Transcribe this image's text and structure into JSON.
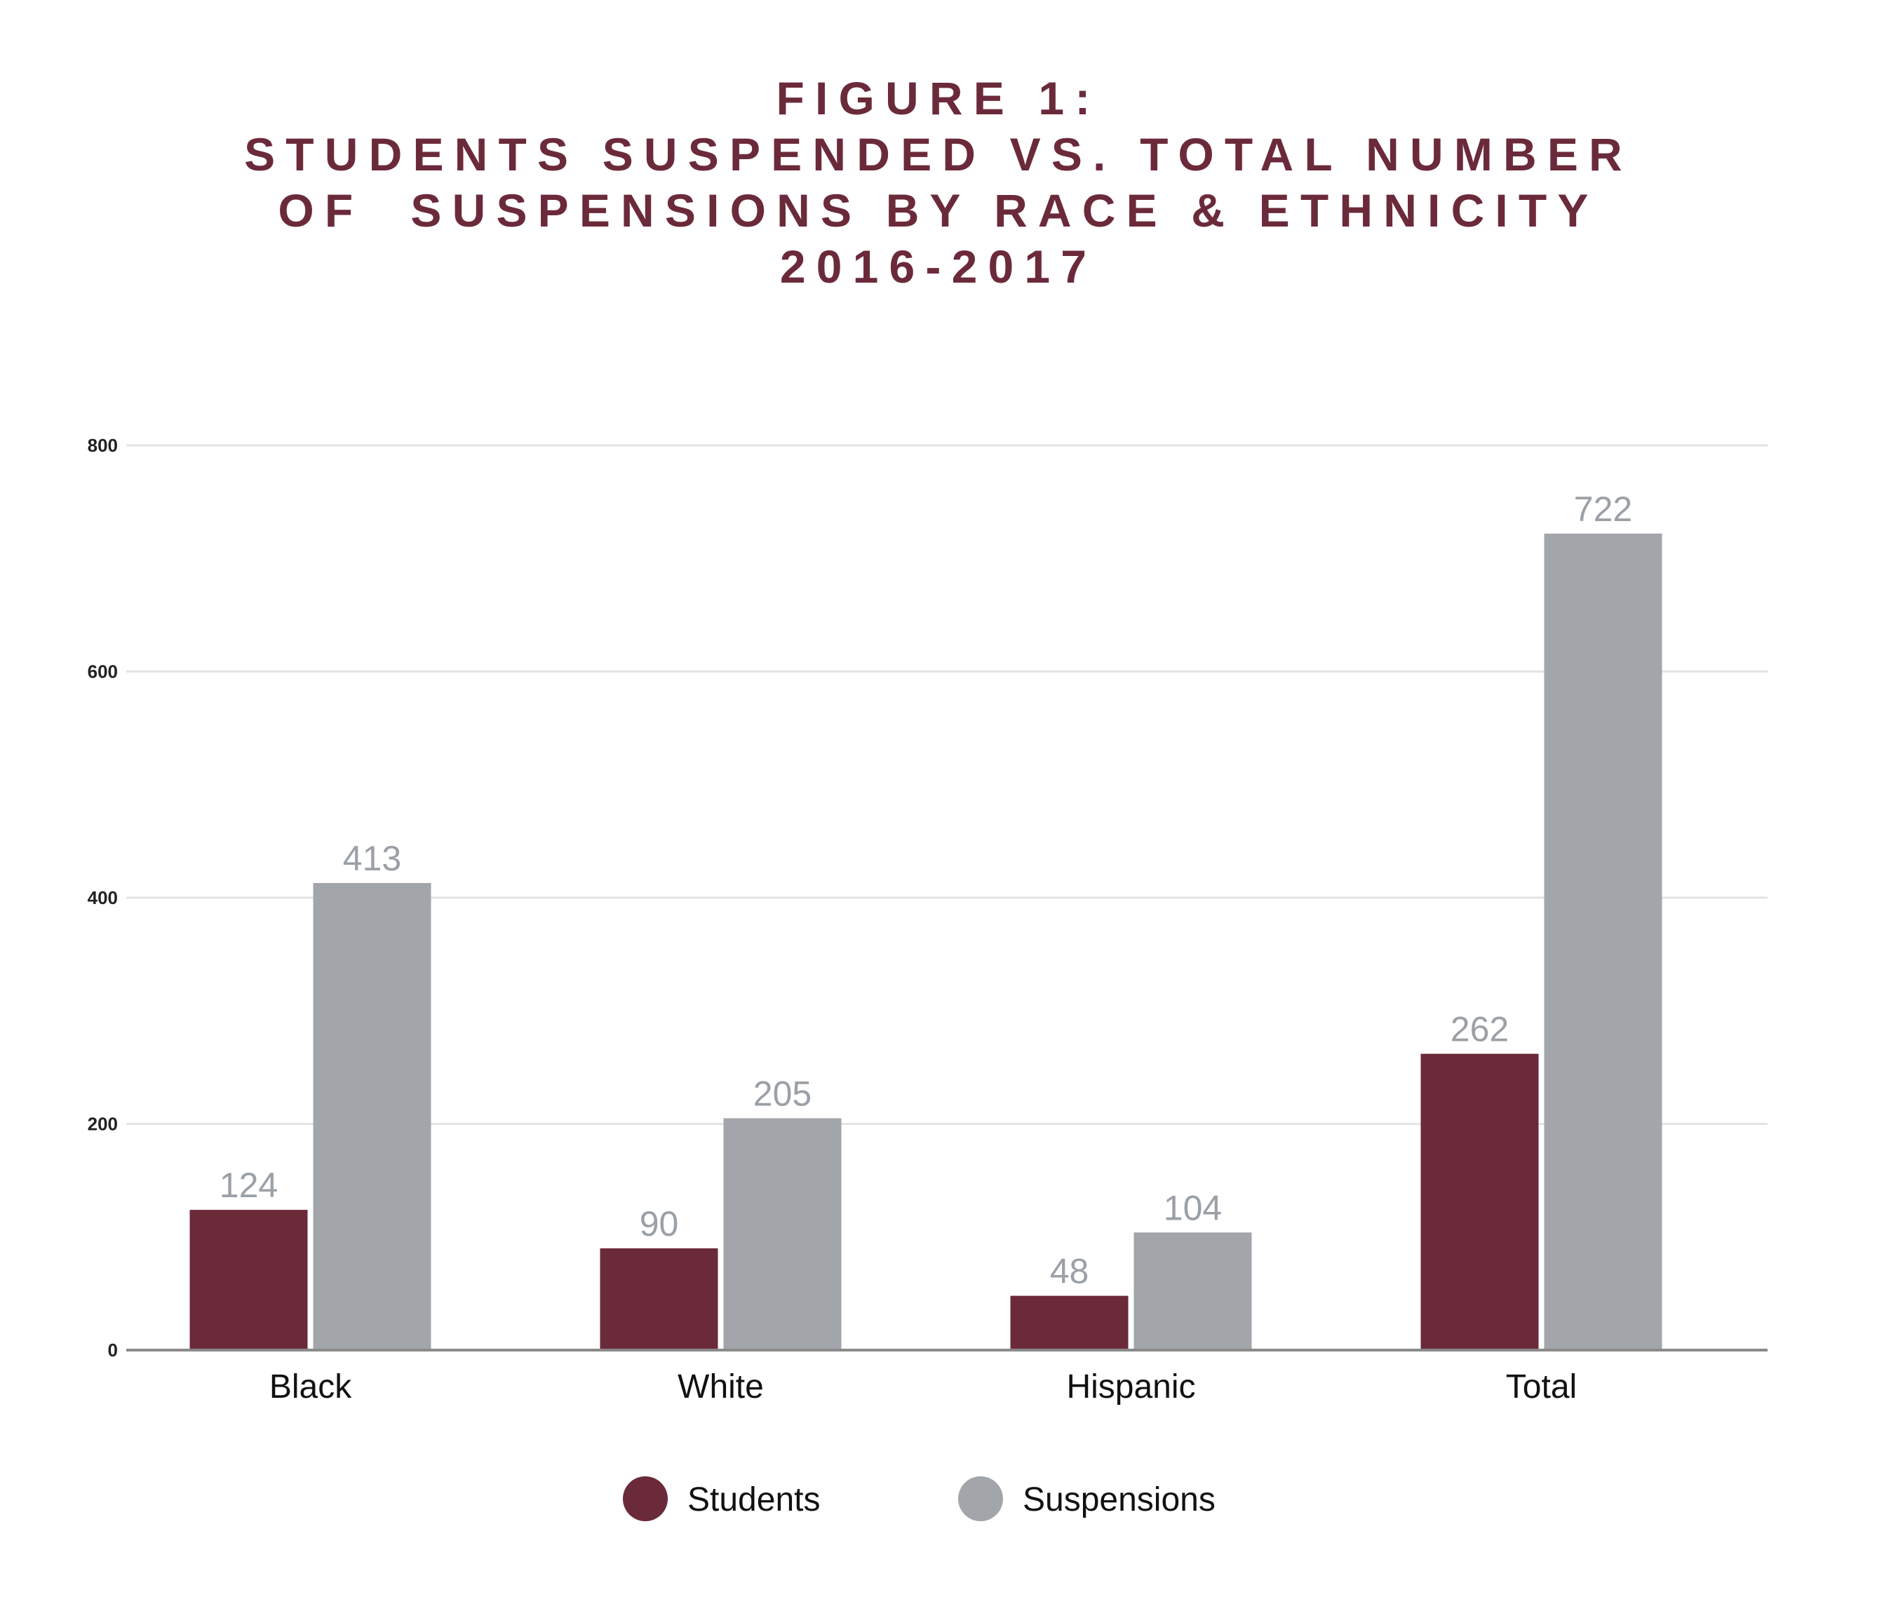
{
  "chart_data": {
    "type": "bar",
    "title": "FIGURE 1:",
    "subtitle_lines": [
      "STUDENTS SUSPENDED VS. TOTAL NUMBER",
      "OF  SUSPENSIONS BY RACE & ETHNICITY",
      "2016-2017"
    ],
    "categories": [
      "Black",
      "White",
      "Hispanic",
      "Total"
    ],
    "series": [
      {
        "name": "Students",
        "color": "#6b2a3a",
        "values": [
          124,
          90,
          48,
          262
        ]
      },
      {
        "name": "Suspensions",
        "color": "#a2a6aa",
        "values": [
          413,
          205,
          104,
          722
        ]
      }
    ],
    "yticks": [
      "0",
      "200",
      "400",
      "600",
      "800"
    ],
    "ylim": [
      0,
      800
    ],
    "grid": true,
    "legend_position": "bottom-center",
    "data_label_color": "#9aa0a6",
    "grid_color": "#e3e3e3",
    "axis_color": "#8a8a8a"
  }
}
